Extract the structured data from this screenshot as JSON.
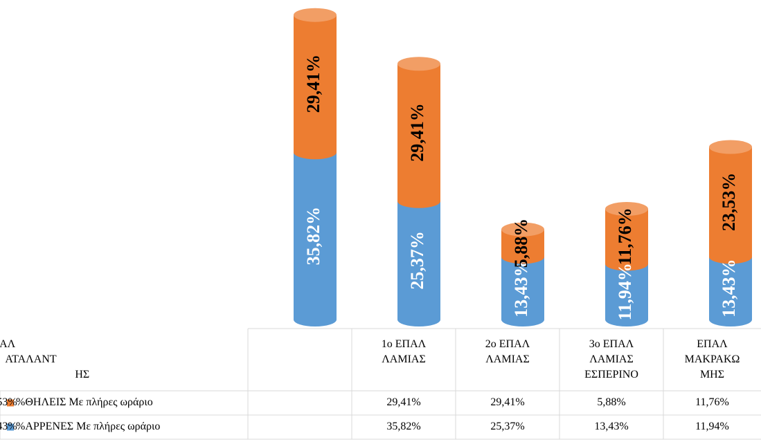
{
  "chart_data": {
    "type": "stacked_cylinder",
    "categories": [
      "1ο ΕΠΑΛ\nΛΑΜΙΑΣ",
      "2ο ΕΠΑΛ\nΛΑΜΙΑΣ",
      "3ο ΕΠΑΛ\nΛΑΜΙΑΣ\nΕΣΠΕΡΙΝΟ",
      "ΕΠΑΛ\nΜΑΚΡΑΚΩ\nΜΗΣ",
      "ΕΠΑΛ\nΑΤΑΛΑΝΤ\nΗΣ"
    ],
    "series": [
      {
        "name": "%ΘΗΛΕΙΣ Με πλήρες ωράριο",
        "color": "#ed7d31",
        "values": [
          29.41,
          29.41,
          5.88,
          11.76,
          23.53
        ],
        "value_labels": [
          "29,41%",
          "29,41%",
          "5,88%",
          "11,76%",
          "23,53%"
        ]
      },
      {
        "name": "%ΑΡΡΕΝΕΣ Με πλήρες ωράριο",
        "color": "#5b9bd5",
        "values": [
          35.82,
          25.37,
          13.43,
          11.94,
          13.43
        ],
        "value_labels": [
          "35,82%",
          "25,37%",
          "13,43%",
          "11,94%",
          "13,43%"
        ]
      }
    ]
  }
}
